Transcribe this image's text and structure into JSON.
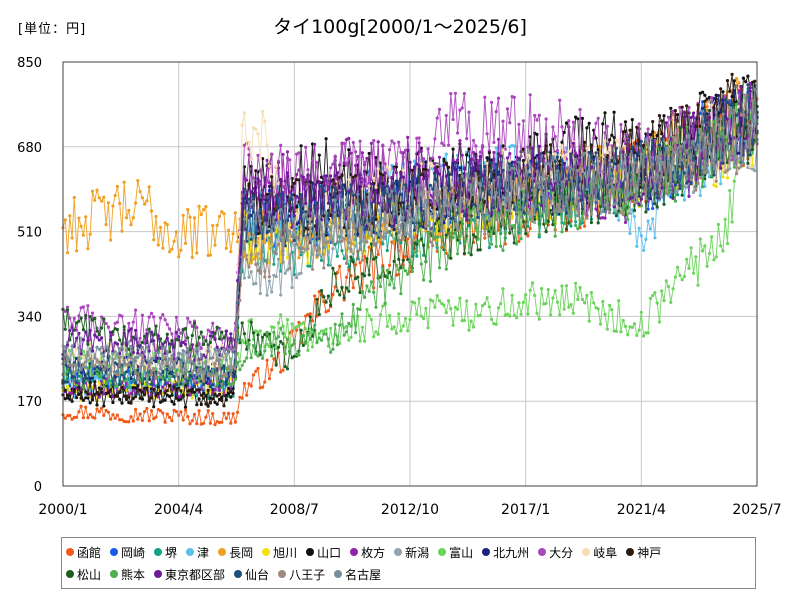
{
  "unit_label": "[単位：円]",
  "chart_data": {
    "type": "line",
    "title": "タイ100g[2000/1～2025/6]",
    "xlabel": "",
    "ylabel": "",
    "ylim": [
      0,
      850
    ],
    "yticks": [
      "0",
      "170",
      "340",
      "510",
      "680",
      "850"
    ],
    "xticks": [
      "2000/1",
      "2004/4",
      "2008/7",
      "2012/10",
      "2017/1",
      "2021/4",
      "2025/7"
    ],
    "grid": true,
    "legend_position": "bottom",
    "series": [
      {
        "name": "函館",
        "color": "#f05a1a",
        "anchors": [
          [
            2000.0,
            150
          ],
          [
            2006.3,
            135
          ],
          [
            2006.6,
            190
          ],
          [
            2008.0,
            250
          ],
          [
            2009.0,
            330
          ],
          [
            2010.0,
            400
          ],
          [
            2012.0,
            460
          ],
          [
            2014.0,
            510
          ],
          [
            2016.0,
            530
          ],
          [
            2018.0,
            560
          ],
          [
            2020.0,
            600
          ],
          [
            2022.0,
            650
          ],
          [
            2024.0,
            700
          ],
          [
            2025.5,
            730
          ]
        ]
      },
      {
        "name": "岡崎",
        "color": "#1a5ae6",
        "anchors": [
          [
            2000.0,
            220
          ],
          [
            2006.3,
            210
          ],
          [
            2006.6,
            540
          ],
          [
            2009.0,
            540
          ],
          [
            2012.0,
            560
          ],
          [
            2015.0,
            590
          ],
          [
            2018.0,
            610
          ],
          [
            2020.0,
            620
          ],
          [
            2022.0,
            620
          ],
          [
            2023.5,
            720
          ],
          [
            2025.5,
            760
          ]
        ]
      },
      {
        "name": "堺",
        "color": "#16a085",
        "anchors": [
          [
            2000.0,
            210
          ],
          [
            2006.3,
            195
          ],
          [
            2006.6,
            480
          ],
          [
            2009.0,
            470
          ],
          [
            2012.0,
            500
          ],
          [
            2015.0,
            530
          ],
          [
            2018.0,
            560
          ],
          [
            2020.0,
            590
          ],
          [
            2022.0,
            620
          ],
          [
            2025.5,
            730
          ]
        ]
      },
      {
        "name": "津",
        "color": "#5bc0f0",
        "anchors": [
          [
            2000.0,
            200
          ],
          [
            2006.3,
            205
          ],
          [
            2006.6,
            580
          ],
          [
            2009.0,
            560
          ],
          [
            2012.0,
            590
          ],
          [
            2015.0,
            620
          ],
          [
            2018.0,
            610
          ],
          [
            2020.0,
            620
          ],
          [
            2021.5,
            500
          ],
          [
            2022.0,
            600
          ],
          [
            2025.5,
            730
          ]
        ]
      },
      {
        "name": "長岡",
        "color": "#f0a020",
        "anchors": [
          [
            2000.0,
            520
          ],
          [
            2002.0,
            550
          ],
          [
            2003.0,
            560
          ],
          [
            2004.0,
            500
          ],
          [
            2006.0,
            520
          ],
          [
            2006.5,
            500
          ],
          [
            2009.0,
            510
          ],
          [
            2012.0,
            540
          ],
          [
            2015.0,
            570
          ],
          [
            2018.0,
            610
          ],
          [
            2021.0,
            630
          ],
          [
            2024.0,
            720
          ],
          [
            2025.5,
            770
          ]
        ]
      },
      {
        "name": "旭川",
        "color": "#f0e010",
        "anchors": [
          [
            2000.0,
            190
          ],
          [
            2006.3,
            200
          ],
          [
            2006.6,
            500
          ],
          [
            2009.0,
            500
          ],
          [
            2012.0,
            520
          ],
          [
            2015.0,
            560
          ],
          [
            2018.0,
            580
          ],
          [
            2021.0,
            620
          ],
          [
            2025.5,
            700
          ]
        ]
      },
      {
        "name": "山口",
        "color": "#111111",
        "anchors": [
          [
            2000.0,
            180
          ],
          [
            2006.3,
            175
          ],
          [
            2006.6,
            600
          ],
          [
            2008.0,
            610
          ],
          [
            2010.0,
            640
          ],
          [
            2012.0,
            610
          ],
          [
            2015.0,
            620
          ],
          [
            2018.0,
            650
          ],
          [
            2019.5,
            700
          ],
          [
            2021.0,
            660
          ],
          [
            2025.5,
            760
          ]
        ]
      },
      {
        "name": "枚方",
        "color": "#8e24aa",
        "anchors": [
          [
            2000.0,
            200
          ],
          [
            2006.3,
            200
          ],
          [
            2006.6,
            600
          ],
          [
            2008.0,
            600
          ],
          [
            2010.0,
            630
          ],
          [
            2012.0,
            630
          ],
          [
            2015.0,
            630
          ],
          [
            2018.0,
            620
          ],
          [
            2021.0,
            580
          ],
          [
            2025.5,
            740
          ]
        ]
      },
      {
        "name": "新潟",
        "color": "#90a4ae",
        "anchors": [
          [
            2000.0,
            270
          ],
          [
            2006.3,
            250
          ],
          [
            2006.6,
            420
          ],
          [
            2008.0,
            430
          ],
          [
            2010.0,
            500
          ],
          [
            2012.0,
            560
          ],
          [
            2015.0,
            570
          ],
          [
            2018.0,
            590
          ],
          [
            2021.0,
            610
          ],
          [
            2025.5,
            690
          ]
        ]
      },
      {
        "name": "富山",
        "color": "#6cd45c",
        "anchors": [
          [
            2000.0,
            250
          ],
          [
            2006.3,
            240
          ],
          [
            2006.6,
            300
          ],
          [
            2008.0,
            310
          ],
          [
            2010.0,
            290
          ],
          [
            2012.0,
            340
          ],
          [
            2015.0,
            350
          ],
          [
            2018.0,
            380
          ],
          [
            2020.0,
            350
          ],
          [
            2021.0,
            320
          ],
          [
            2022.0,
            360
          ],
          [
            2023.0,
            440
          ],
          [
            2024.0,
            470
          ],
          [
            2025.5,
            740
          ]
        ]
      },
      {
        "name": "北九州",
        "color": "#1a237e",
        "anchors": [
          [
            2000.0,
            240
          ],
          [
            2006.3,
            230
          ],
          [
            2006.6,
            560
          ],
          [
            2009.0,
            550
          ],
          [
            2012.0,
            570
          ],
          [
            2015.0,
            600
          ],
          [
            2018.0,
            610
          ],
          [
            2021.0,
            630
          ],
          [
            2025.5,
            750
          ]
        ]
      },
      {
        "name": "大分",
        "color": "#ab47bc",
        "anchors": [
          [
            2000.0,
            330
          ],
          [
            2003.0,
            320
          ],
          [
            2006.3,
            290
          ],
          [
            2006.6,
            620
          ],
          [
            2009.0,
            620
          ],
          [
            2011.0,
            630
          ],
          [
            2013.5,
            640
          ],
          [
            2014.0,
            710
          ],
          [
            2018.5,
            710
          ],
          [
            2019.0,
            680
          ],
          [
            2021.0,
            660
          ],
          [
            2025.5,
            740
          ]
        ]
      },
      {
        "name": "岐阜",
        "color": "#f5deb3",
        "anchors": [
          [
            2000.0,
            260
          ],
          [
            2006.3,
            260
          ],
          [
            2006.6,
            700
          ],
          [
            2007.3,
            720
          ],
          [
            2008.0,
            560
          ],
          [
            2010.0,
            560
          ],
          [
            2012.0,
            580
          ],
          [
            2015.0,
            600
          ],
          [
            2018.0,
            620
          ],
          [
            2021.0,
            640
          ],
          [
            2025.5,
            720
          ]
        ]
      },
      {
        "name": "神戸",
        "color": "#2b1b0e",
        "anchors": [
          [
            2000.0,
            190
          ],
          [
            2006.3,
            180
          ],
          [
            2006.6,
            560
          ],
          [
            2009.0,
            560
          ],
          [
            2012.0,
            580
          ],
          [
            2015.0,
            600
          ],
          [
            2018.0,
            620
          ],
          [
            2021.0,
            650
          ],
          [
            2025.5,
            770
          ]
        ]
      },
      {
        "name": "松山",
        "color": "#1b5e20",
        "anchors": [
          [
            2000.0,
            320
          ],
          [
            2003.0,
            290
          ],
          [
            2006.3,
            300
          ],
          [
            2006.6,
            310
          ],
          [
            2007.5,
            280
          ],
          [
            2008.5,
            250
          ],
          [
            2009.5,
            380
          ],
          [
            2012.0,
            460
          ],
          [
            2015.0,
            520
          ],
          [
            2018.0,
            560
          ],
          [
            2021.0,
            600
          ],
          [
            2025.5,
            730
          ]
        ]
      },
      {
        "name": "熊本",
        "color": "#4caf50",
        "anchors": [
          [
            2000.0,
            220
          ],
          [
            2006.3,
            220
          ],
          [
            2006.6,
            260
          ],
          [
            2008.0,
            290
          ],
          [
            2010.0,
            300
          ],
          [
            2012.0,
            420
          ],
          [
            2015.0,
            500
          ],
          [
            2018.0,
            560
          ],
          [
            2021.0,
            600
          ],
          [
            2025.5,
            720
          ]
        ]
      },
      {
        "name": "東京都区部",
        "color": "#6a1b9a",
        "anchors": [
          [
            2000.0,
            290
          ],
          [
            2006.3,
            280
          ],
          [
            2006.6,
            560
          ],
          [
            2009.0,
            570
          ],
          [
            2012.0,
            580
          ],
          [
            2015.0,
            600
          ],
          [
            2018.0,
            620
          ],
          [
            2021.0,
            630
          ],
          [
            2025.5,
            740
          ]
        ]
      },
      {
        "name": "仙台",
        "color": "#1f4e79",
        "anchors": [
          [
            2000.0,
            230
          ],
          [
            2006.3,
            220
          ],
          [
            2006.6,
            540
          ],
          [
            2009.0,
            540
          ],
          [
            2012.0,
            560
          ],
          [
            2015.0,
            590
          ],
          [
            2018.0,
            610
          ],
          [
            2021.0,
            620
          ],
          [
            2025.5,
            740
          ]
        ]
      },
      {
        "name": "八王子",
        "color": "#a1887f",
        "anchors": [
          [
            2000.0,
            240
          ],
          [
            2006.3,
            230
          ],
          [
            2006.6,
            460
          ],
          [
            2009.0,
            480
          ],
          [
            2012.0,
            520
          ],
          [
            2015.0,
            560
          ],
          [
            2018.0,
            590
          ],
          [
            2021.0,
            610
          ],
          [
            2025.5,
            720
          ]
        ]
      },
      {
        "name": "名古屋",
        "color": "#78909c",
        "anchors": [
          [
            2000.0,
            260
          ],
          [
            2006.3,
            255
          ],
          [
            2006.6,
            520
          ],
          [
            2009.0,
            510
          ],
          [
            2012.0,
            540
          ],
          [
            2015.0,
            570
          ],
          [
            2018.0,
            600
          ],
          [
            2021.0,
            620
          ],
          [
            2025.5,
            730
          ]
        ]
      }
    ]
  }
}
